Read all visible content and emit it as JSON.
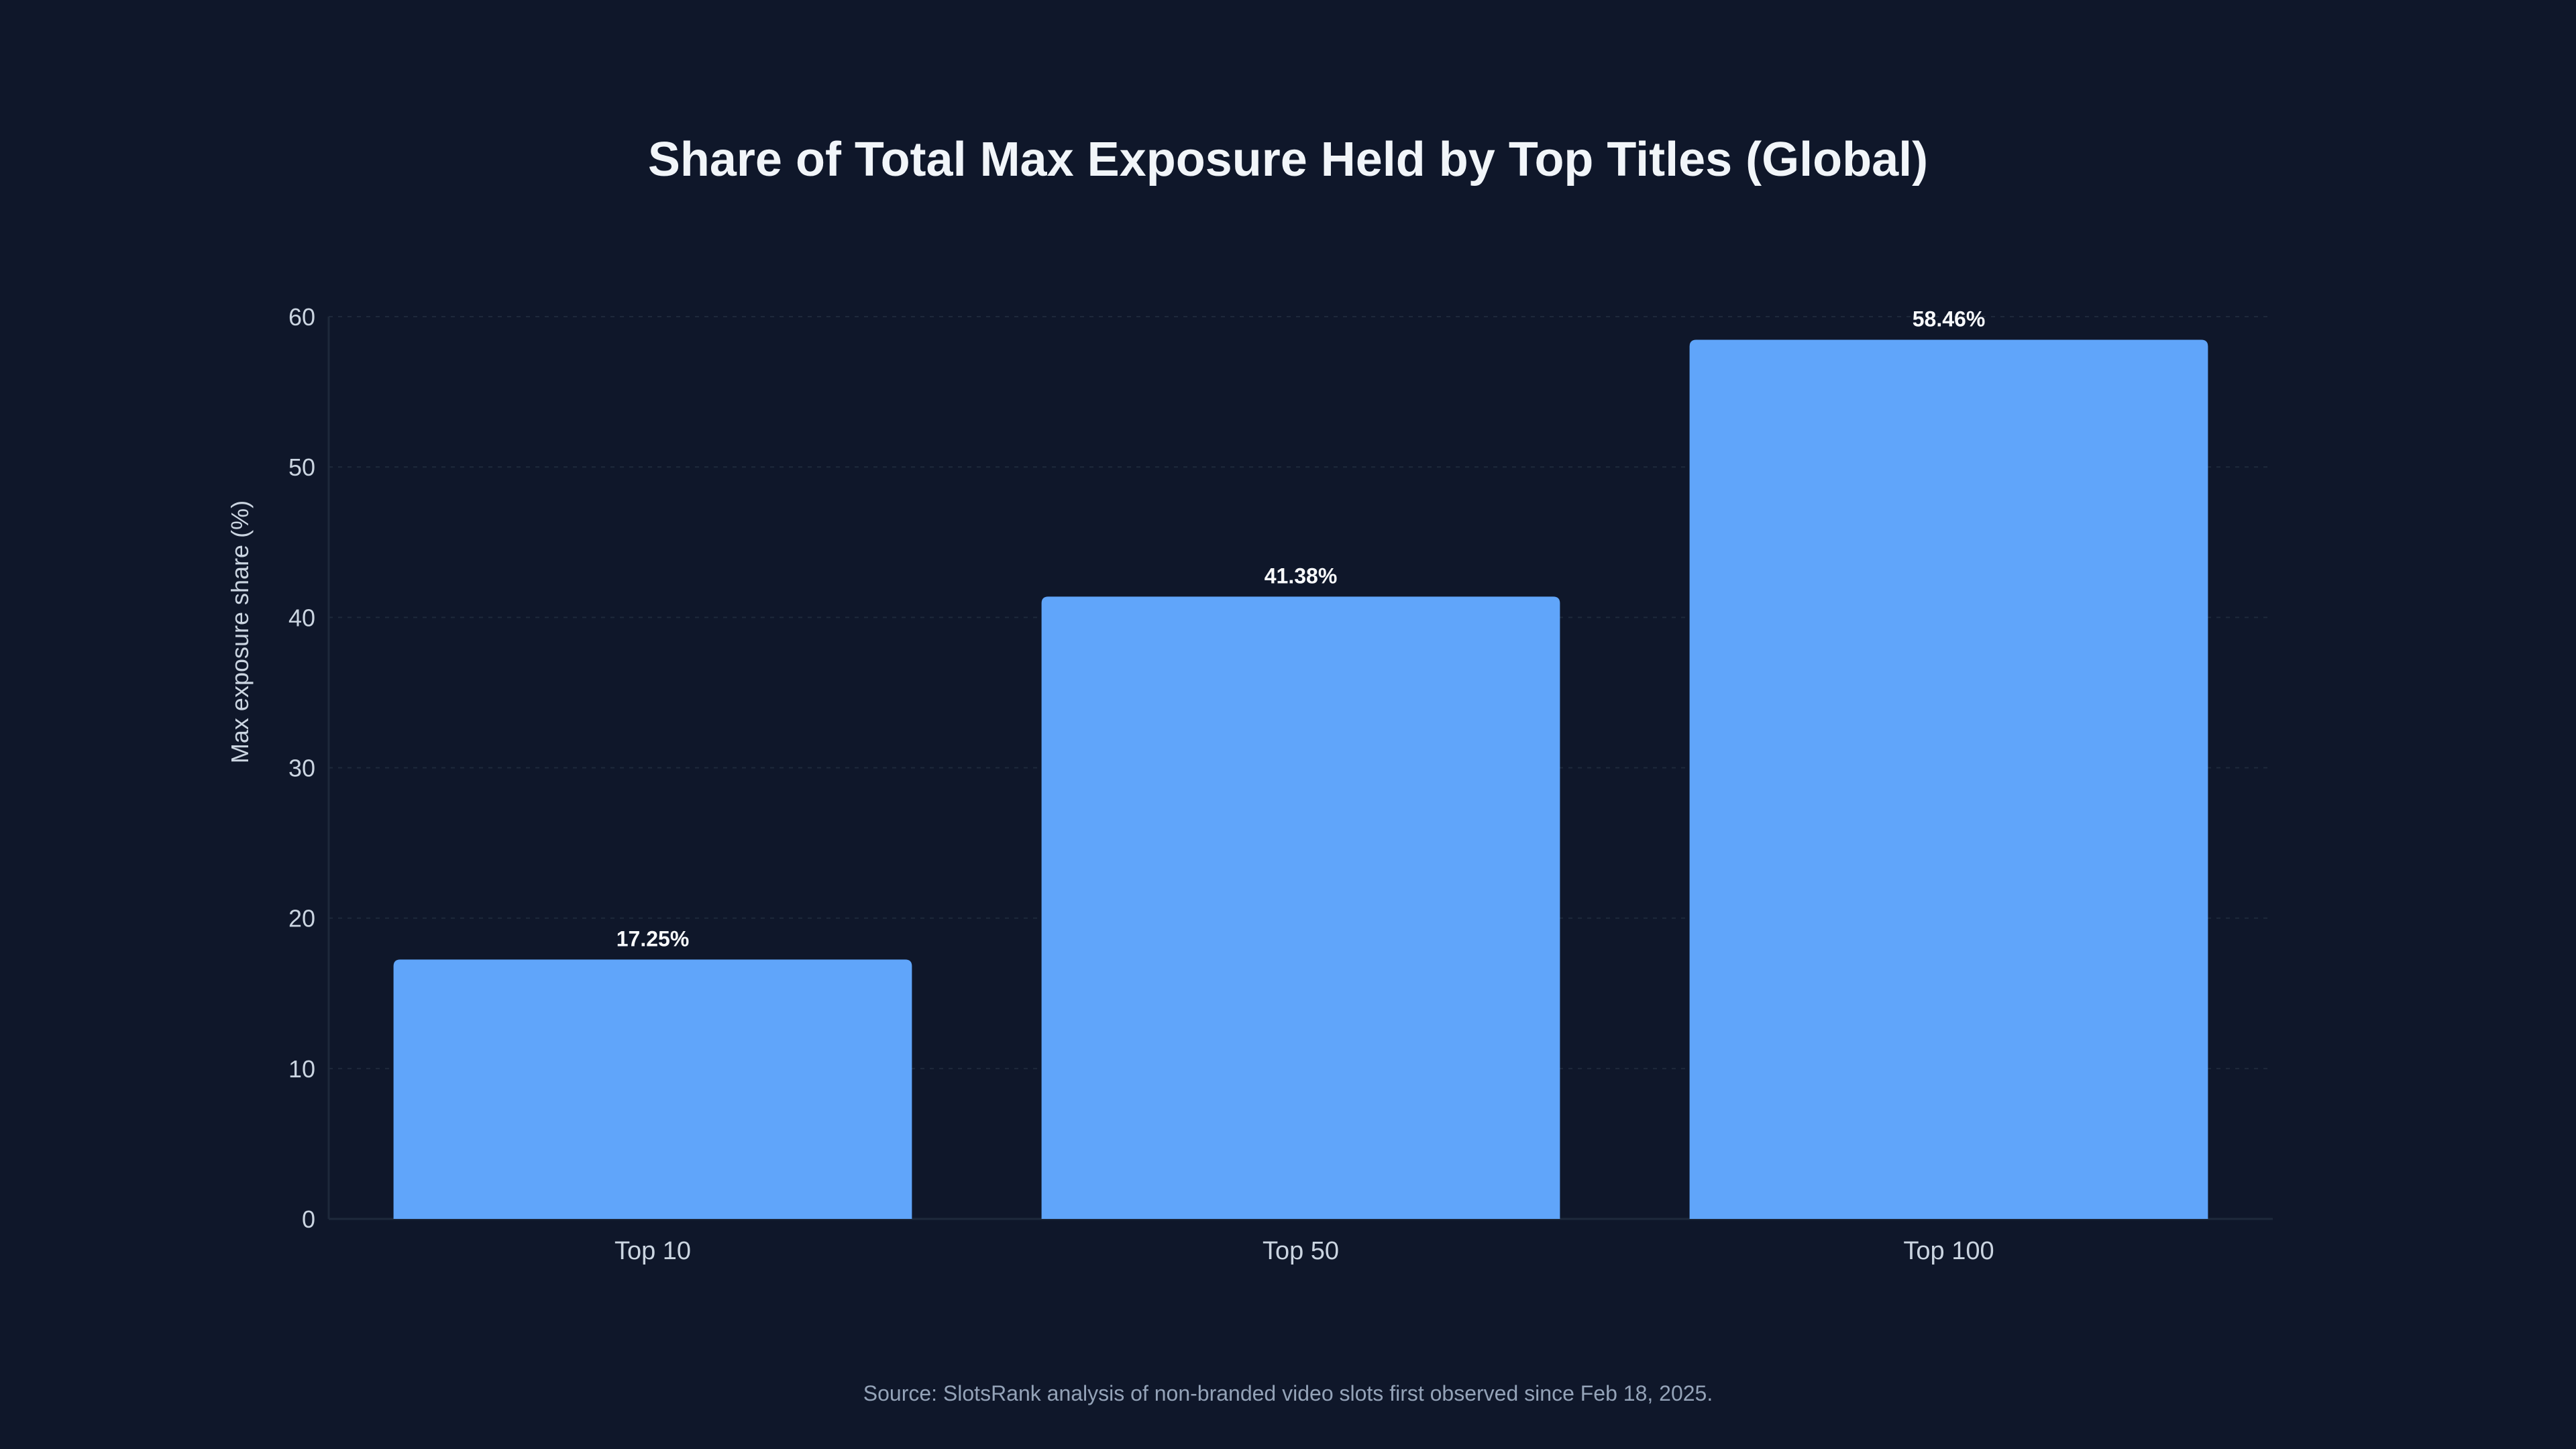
{
  "colors": {
    "background": "#0f172a",
    "bar": "#60a5fa",
    "title": "#f1f5f9",
    "axis_text": "#cbd5e1",
    "grid": "#1e293b",
    "source": "#94a3b8"
  },
  "chart_data": {
    "type": "bar",
    "title": "Share of Total Max Exposure Held by Top Titles (Global)",
    "xlabel": "",
    "ylabel": "Max exposure share (%)",
    "categories": [
      "Top 10",
      "Top 50",
      "Top 100"
    ],
    "values": [
      17.25,
      41.38,
      58.46
    ],
    "value_labels": [
      "17.25%",
      "41.38%",
      "58.46%"
    ],
    "ylim": [
      0,
      60
    ],
    "yticks": [
      "0",
      "10",
      "20",
      "30",
      "40",
      "50",
      "60"
    ],
    "grid": true,
    "legend": "none"
  },
  "footer": {
    "source": "Source: SlotsRank analysis of non-branded video slots first observed since Feb 18, 2025."
  }
}
